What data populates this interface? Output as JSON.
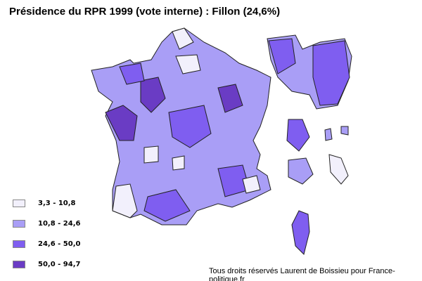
{
  "title": "Présidence du RPR 1999 (vote interne) : Fillon (24,6%)",
  "credit": "Tous droits réservés Laurent de Boissieu pour France-politique.fr",
  "legend": [
    {
      "label": "3,3 - 10,8",
      "color": "#f2f0fc"
    },
    {
      "label": "10,8 - 24,6",
      "color": "#a99ef6"
    },
    {
      "label": "24,6 - 50,0",
      "color": "#7f5ef0"
    },
    {
      "label": "50,0 - 94,7",
      "color": "#6a3cc4"
    }
  ]
}
